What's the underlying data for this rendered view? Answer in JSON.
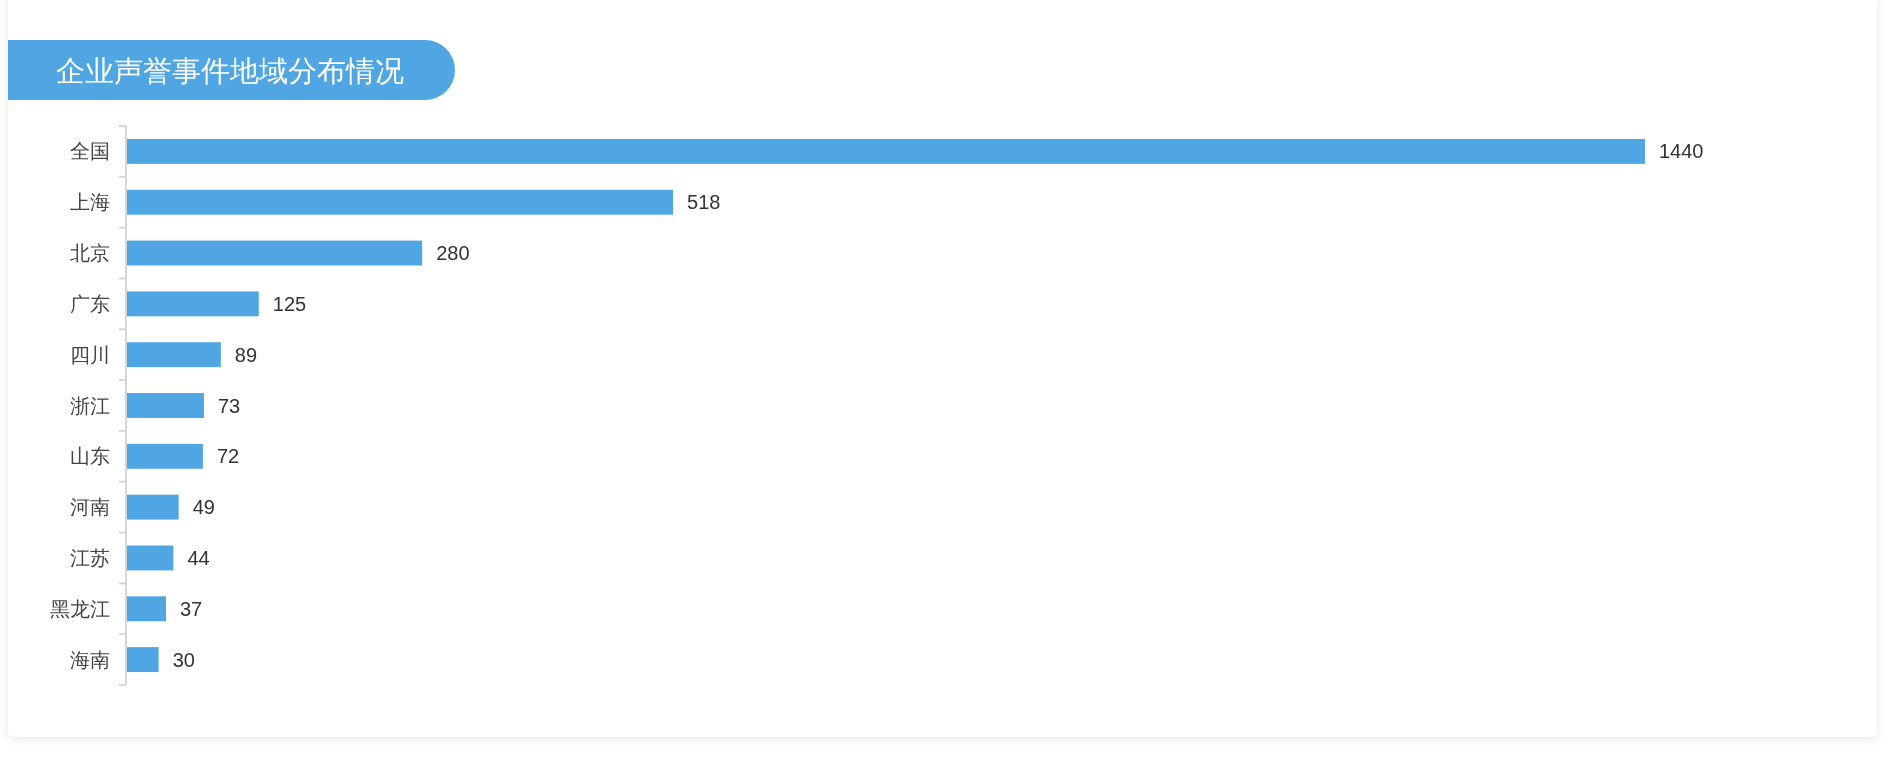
{
  "chart_data": {
    "type": "bar",
    "orientation": "horizontal",
    "title": "企业声誉事件地域分布情况",
    "categories": [
      "全国",
      "上海",
      "北京",
      "广东",
      "四川",
      "浙江",
      "山东",
      "河南",
      "江苏",
      "黑龙江",
      "海南"
    ],
    "values": [
      1440,
      518,
      280,
      125,
      89,
      73,
      72,
      49,
      44,
      37,
      30
    ],
    "color": "#4fa6e3",
    "data_labels": true,
    "tick_labels": "y"
  }
}
